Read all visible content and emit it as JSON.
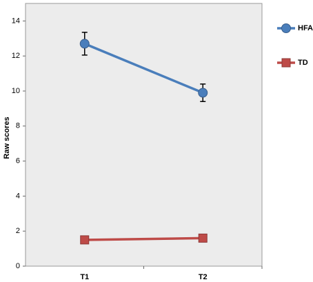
{
  "chart_data": {
    "type": "line",
    "y_label": "Raw scores",
    "categories": [
      "T1",
      "T2"
    ],
    "series": [
      {
        "name": "HFA",
        "color": "#4a7ebb",
        "marker": "circle",
        "values": [
          12.7,
          9.9
        ],
        "errors": [
          0.65,
          0.5
        ]
      },
      {
        "name": "TD",
        "color": "#be4b48",
        "marker": "square",
        "values": [
          1.5,
          1.6
        ]
      }
    ],
    "ylim": [
      0,
      15
    ],
    "yticks": [
      0,
      2,
      4,
      6,
      8,
      10,
      12,
      14
    ],
    "legend": "right"
  }
}
